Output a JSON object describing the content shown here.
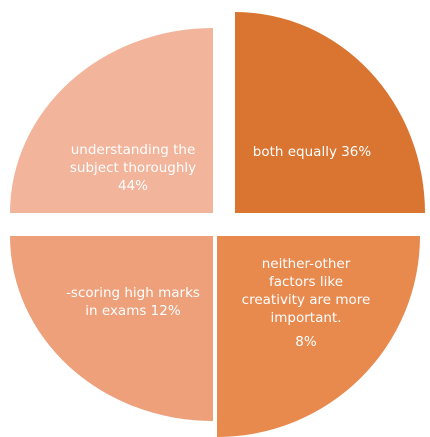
{
  "quadrants": [
    {
      "lines": [
        "understanding the",
        "subject thoroughly",
        "44%"
      ]
    },
    {
      "lines": [
        "both equally 36%"
      ]
    },
    {
      "lines": [
        "-scoring high marks",
        "in exams 12%"
      ]
    },
    {
      "lines": [
        "neither-other",
        "factors like",
        "creativity are more",
        "important.",
        "8%"
      ]
    }
  ]
}
